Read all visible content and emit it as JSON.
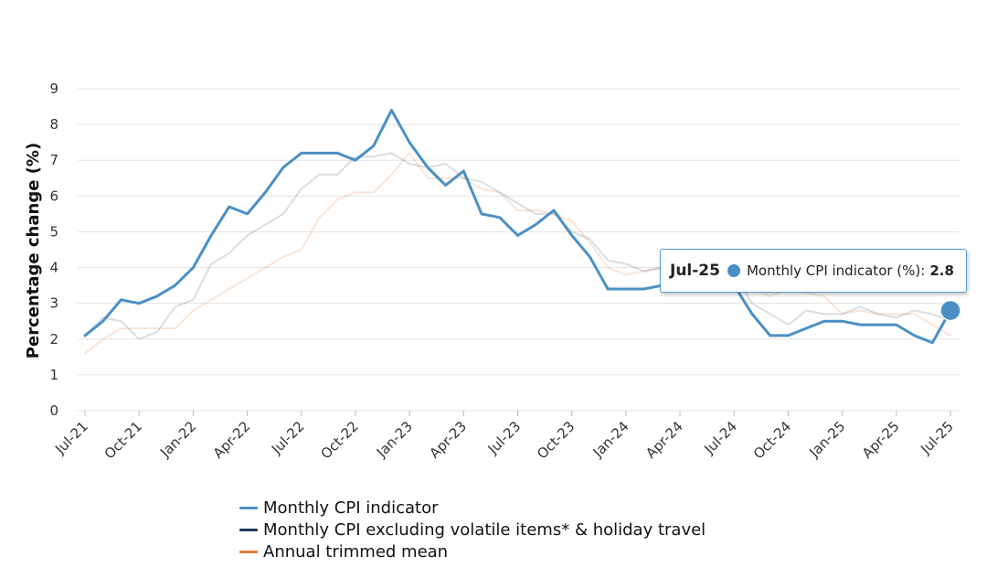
{
  "chart_data": {
    "type": "line",
    "ylabel": "Percentage change (%)",
    "xlabel": "",
    "ylim": [
      0,
      9
    ],
    "y_ticks": [
      "0",
      "1",
      "2",
      "3",
      "4",
      "5",
      "6",
      "7",
      "8",
      "9"
    ],
    "x_tick_labels": [
      "Jul-21",
      "Oct-21",
      "Jan-22",
      "Apr-22",
      "Jul-22",
      "Oct-22",
      "Jan-23",
      "Apr-23",
      "Jul-23",
      "Oct-23",
      "Jan-24",
      "Apr-24",
      "Jul-24",
      "Oct-24",
      "Jan-25",
      "Apr-25",
      "Jul-25"
    ],
    "x": [
      "Jul-21",
      "Aug-21",
      "Sep-21",
      "Oct-21",
      "Nov-21",
      "Dec-21",
      "Jan-22",
      "Feb-22",
      "Mar-22",
      "Apr-22",
      "May-22",
      "Jun-22",
      "Jul-22",
      "Aug-22",
      "Sep-22",
      "Oct-22",
      "Nov-22",
      "Dec-22",
      "Jan-23",
      "Feb-23",
      "Mar-23",
      "Apr-23",
      "May-23",
      "Jun-23",
      "Jul-23",
      "Aug-23",
      "Sep-23",
      "Oct-23",
      "Nov-23",
      "Dec-23",
      "Jan-24",
      "Feb-24",
      "Mar-24",
      "Apr-24",
      "May-24",
      "Jun-24",
      "Jul-24",
      "Aug-24",
      "Sep-24",
      "Oct-24",
      "Nov-24",
      "Dec-24",
      "Jan-25",
      "Feb-25",
      "Mar-25",
      "Apr-25",
      "May-25",
      "Jun-25",
      "Jul-25"
    ],
    "grid": true,
    "legend_position": "bottom",
    "series": [
      {
        "name": "Monthly CPI indicator",
        "color": "#4a90c4",
        "highlighted": true,
        "values": [
          2.1,
          2.5,
          3.1,
          3.0,
          3.2,
          3.5,
          4.0,
          4.9,
          5.7,
          5.5,
          6.1,
          6.8,
          7.2,
          7.2,
          7.2,
          7.0,
          7.4,
          8.4,
          7.5,
          6.8,
          6.3,
          6.7,
          5.5,
          5.4,
          4.9,
          5.2,
          5.6,
          4.9,
          4.3,
          3.4,
          3.4,
          3.4,
          3.5,
          3.6,
          4.0,
          4.0,
          3.5,
          2.7,
          2.1,
          2.1,
          2.3,
          2.5,
          2.5,
          2.4,
          2.4,
          2.4,
          2.1,
          1.9,
          2.8
        ]
      },
      {
        "name": "Monthly CPI excluding volatile items* & holiday travel",
        "color": "#1f3b57",
        "highlighted": false,
        "values": [
          2.1,
          2.6,
          2.5,
          2.0,
          2.2,
          2.9,
          3.1,
          4.1,
          4.4,
          4.9,
          5.2,
          5.5,
          6.2,
          6.6,
          6.6,
          7.1,
          7.1,
          7.2,
          6.9,
          6.8,
          6.9,
          6.5,
          6.4,
          6.1,
          5.8,
          5.5,
          5.5,
          5.0,
          4.8,
          4.2,
          4.1,
          3.9,
          4.0,
          4.1,
          4.1,
          4.0,
          3.8,
          3.0,
          2.7,
          2.4,
          2.8,
          2.7,
          2.7,
          2.9,
          2.7,
          2.6,
          2.8,
          2.7,
          2.5
        ]
      },
      {
        "name": "Annual trimmed mean",
        "color": "#e07b39",
        "highlighted": false,
        "values": [
          1.6,
          2.0,
          2.3,
          2.3,
          2.3,
          2.3,
          2.8,
          3.1,
          3.4,
          3.7,
          4.0,
          4.3,
          4.5,
          5.4,
          5.9,
          6.1,
          6.1,
          6.6,
          7.2,
          6.5,
          6.5,
          6.5,
          6.2,
          6.1,
          5.6,
          5.6,
          5.5,
          5.3,
          4.7,
          4.0,
          3.8,
          3.9,
          4.0,
          4.0,
          4.0,
          3.9,
          3.8,
          3.4,
          3.2,
          3.4,
          3.3,
          3.2,
          2.7,
          2.8,
          2.7,
          2.7,
          2.7,
          2.4,
          2.1
        ]
      }
    ]
  },
  "tooltip": {
    "date": "Jul-25",
    "series_label": "Monthly CPI indicator (%):",
    "value": "2.8"
  }
}
